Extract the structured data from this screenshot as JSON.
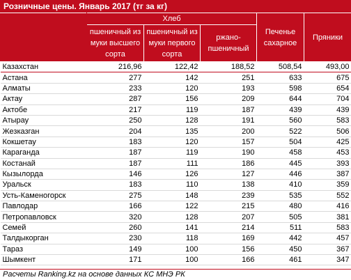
{
  "title": "Розничные цены. Январь 2017 (тг за кг)",
  "headers": {
    "group_bread": "Хлеб",
    "bread_top": "пшеничный из муки высшего сорта",
    "bread_first": "пшеничный из муки первого сорта",
    "bread_rye": "ржано-пшеничный",
    "cookies": "Печенье сахарное",
    "gingerbread": "Пряники"
  },
  "rows": [
    {
      "city": "Казахстан",
      "v1": "216,96",
      "v2": "122,42",
      "v3": "188,52",
      "v4": "508,54",
      "v5": "493,00"
    },
    {
      "city": "Астана",
      "v1": "277",
      "v2": "142",
      "v3": "251",
      "v4": "633",
      "v5": "675"
    },
    {
      "city": "Алматы",
      "v1": "233",
      "v2": "120",
      "v3": "193",
      "v4": "598",
      "v5": "654"
    },
    {
      "city": "Актау",
      "v1": "287",
      "v2": "156",
      "v3": "209",
      "v4": "644",
      "v5": "704"
    },
    {
      "city": "Актобе",
      "v1": "217",
      "v2": "119",
      "v3": "187",
      "v4": "439",
      "v5": "439"
    },
    {
      "city": "Атырау",
      "v1": "250",
      "v2": "128",
      "v3": "191",
      "v4": "560",
      "v5": "583"
    },
    {
      "city": "Жезказган",
      "v1": "204",
      "v2": "135",
      "v3": "200",
      "v4": "522",
      "v5": "506"
    },
    {
      "city": "Кокшетау",
      "v1": "183",
      "v2": "120",
      "v3": "157",
      "v4": "504",
      "v5": "425"
    },
    {
      "city": "Караганда",
      "v1": "187",
      "v2": "119",
      "v3": "190",
      "v4": "458",
      "v5": "453"
    },
    {
      "city": "Костанай",
      "v1": "187",
      "v2": "111",
      "v3": "186",
      "v4": "445",
      "v5": "393"
    },
    {
      "city": "Кызылорда",
      "v1": "146",
      "v2": "126",
      "v3": "127",
      "v4": "446",
      "v5": "387"
    },
    {
      "city": "Уральск",
      "v1": "183",
      "v2": "110",
      "v3": "138",
      "v4": "410",
      "v5": "359"
    },
    {
      "city": "Усть-Каменогорск",
      "v1": "275",
      "v2": "148",
      "v3": "239",
      "v4": "535",
      "v5": "552"
    },
    {
      "city": "Павлодар",
      "v1": "166",
      "v2": "122",
      "v3": "215",
      "v4": "480",
      "v5": "416"
    },
    {
      "city": "Петропавловск",
      "v1": "320",
      "v2": "128",
      "v3": "207",
      "v4": "505",
      "v5": "381"
    },
    {
      "city": "Семей",
      "v1": "260",
      "v2": "141",
      "v3": "214",
      "v4": "511",
      "v5": "583"
    },
    {
      "city": "Талдыкорган",
      "v1": "230",
      "v2": "118",
      "v3": "169",
      "v4": "442",
      "v5": "457"
    },
    {
      "city": "Тараз",
      "v1": "149",
      "v2": "100",
      "v3": "156",
      "v4": "450",
      "v5": "367"
    },
    {
      "city": "Шымкент",
      "v1": "171",
      "v2": "100",
      "v3": "166",
      "v4": "461",
      "v5": "347"
    }
  ],
  "footer": "Расчеты Ranking.kz на основе данных КС МНЭ РК",
  "colors": {
    "header_bg": "#c00d1e",
    "header_text": "#ffffff"
  }
}
